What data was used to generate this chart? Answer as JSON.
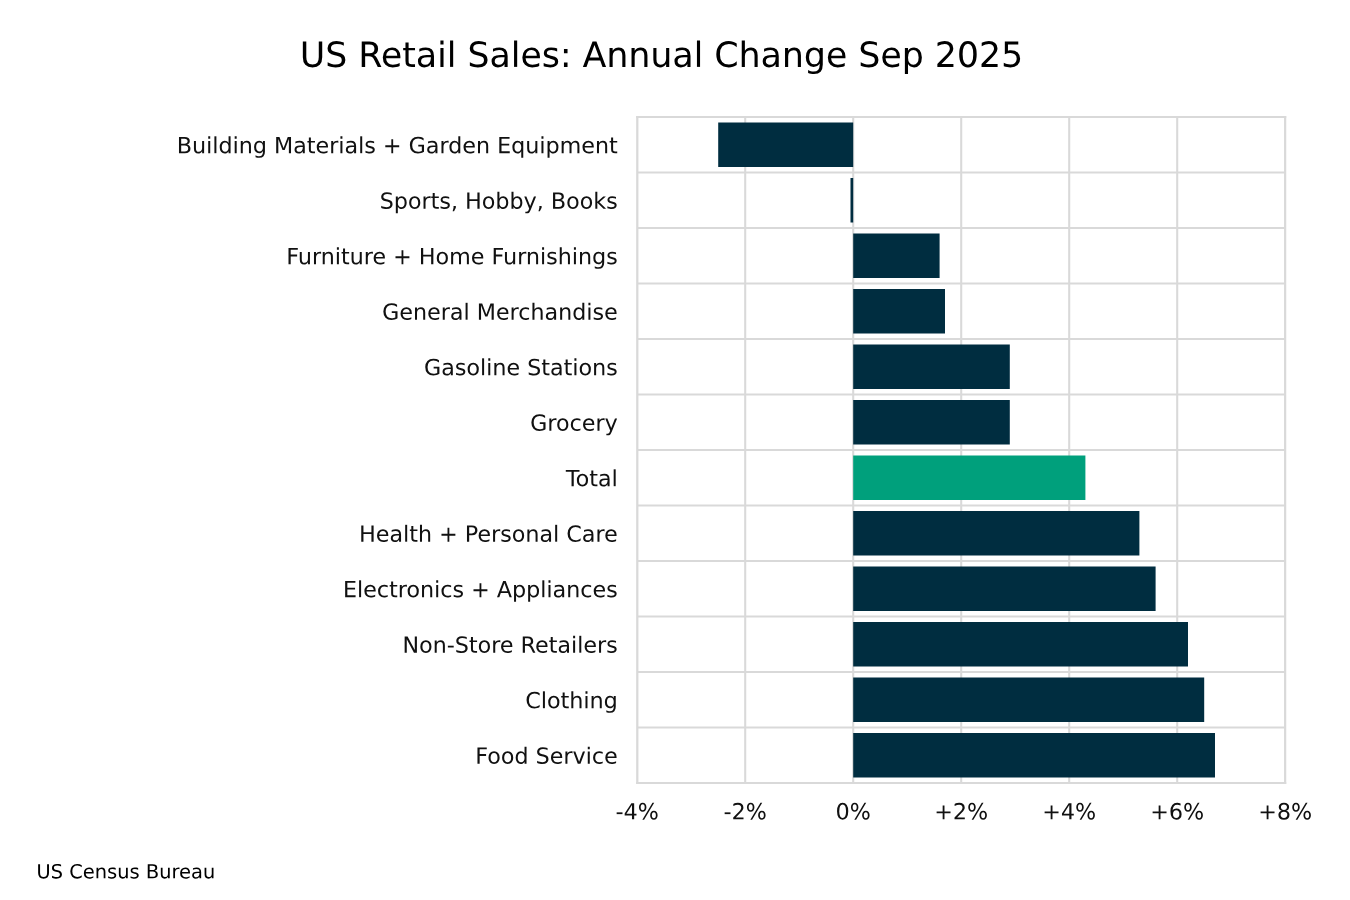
{
  "chart_data": {
    "type": "bar",
    "orientation": "horizontal",
    "title": "US Retail Sales: Annual Change Sep 2025",
    "categories": [
      "Building Materials + Garden Equipment",
      "Sports, Hobby, Books",
      "Furniture + Home Furnishings",
      "General Merchandise",
      "Gasoline Stations",
      "Grocery",
      "Total",
      "Health + Personal Care",
      "Electronics + Appliances",
      "Non-Store Retailers",
      "Clothing",
      "Food Service"
    ],
    "values": [
      -2.5,
      -0.05,
      1.6,
      1.7,
      2.9,
      2.9,
      4.3,
      5.3,
      5.6,
      6.2,
      6.5,
      6.7
    ],
    "colors": [
      "#002d40",
      "#002d40",
      "#002d40",
      "#002d40",
      "#002d40",
      "#002d40",
      "#00a07c",
      "#002d40",
      "#002d40",
      "#002d40",
      "#002d40",
      "#002d40"
    ],
    "xlim": [
      -4,
      8
    ],
    "xticks": [
      {
        "value": -4,
        "label": "-4%"
      },
      {
        "value": -2,
        "label": "-2%"
      },
      {
        "value": 0,
        "label": "0%"
      },
      {
        "value": 2,
        "label": "+2%"
      },
      {
        "value": 4,
        "label": "+4%"
      },
      {
        "value": 6,
        "label": "+6%"
      },
      {
        "value": 8,
        "label": "+8%"
      }
    ],
    "grid": true,
    "annotations": [
      "US Census Bureau"
    ]
  }
}
